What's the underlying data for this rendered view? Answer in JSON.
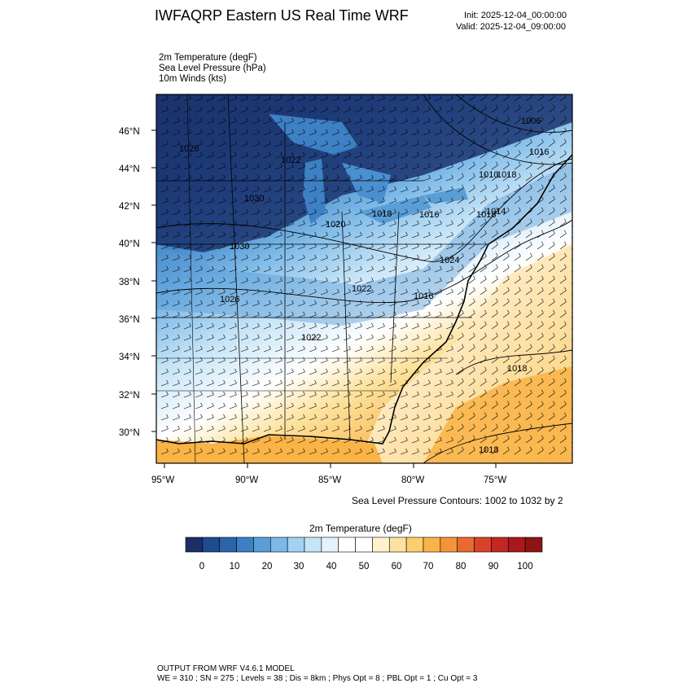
{
  "header": {
    "title": "IWFAQRP Eastern US Real Time WRF",
    "init": "Init: 2025-12-04_00:00:00",
    "valid": "Valid: 2025-12-04_09:00:00"
  },
  "fields": [
    "2m Temperature   (degF)",
    "Sea Level Pressure   (hPa)",
    "10m Winds   (kts)"
  ],
  "axes": {
    "lat_labels": [
      "46°N",
      "44°N",
      "42°N",
      "40°N",
      "38°N",
      "36°N",
      "34°N",
      "32°N",
      "30°N"
    ],
    "lon_labels": [
      "95°W",
      "90°W",
      "85°W",
      "80°W",
      "75°W"
    ]
  },
  "contour_labels": [
    "1006",
    "1016",
    "1010",
    "1014",
    "1018",
    "1018",
    "1018",
    "1020",
    "1022",
    "1026",
    "1030",
    "1030",
    "1022",
    "1026",
    "1016",
    "1024",
    "1016",
    "1022",
    "1018",
    "1018"
  ],
  "contour_note": "Sea Level Pressure Contours: 1002 to 1032 by 2",
  "colorbar": {
    "title": "2m Temperature  (degF)",
    "colors": [
      "#1a2f66",
      "#1f4b8f",
      "#2c64ab",
      "#3d80c4",
      "#5a9ed8",
      "#7cb9e8",
      "#a2d2f2",
      "#c6e4f7",
      "#e4f2fb",
      "#ffffff",
      "#ffffff",
      "#fff2cc",
      "#fde3a0",
      "#fcce6e",
      "#f9b347",
      "#f4933a",
      "#e96a2f",
      "#d94128",
      "#c22722",
      "#a8181c",
      "#8c1416"
    ],
    "labels": [
      "0",
      "10",
      "20",
      "30",
      "40",
      "50",
      "60",
      "70",
      "80",
      "90",
      "100"
    ]
  },
  "footer": {
    "line1": "OUTPUT FROM WRF V4.6.1 MODEL",
    "line2": "WE = 310 ; SN = 275 ; Levels = 38 ; Dis = 8km ; Phys Opt = 8 ; PBL Opt = 1 ; Cu Opt = 3"
  }
}
